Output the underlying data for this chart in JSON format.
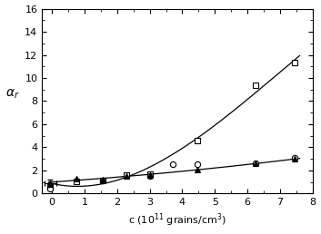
{
  "title": "",
  "xlabel": "c (10$^{11}$ grains/cm$^3$)",
  "ylabel": "$\\alpha_r$",
  "xlim": [
    -0.3,
    8
  ],
  "ylim": [
    0,
    16
  ],
  "xticks": [
    0,
    1,
    2,
    3,
    4,
    5,
    6,
    7,
    8
  ],
  "yticks": [
    0,
    2,
    4,
    6,
    8,
    10,
    12,
    14,
    16
  ],
  "series_squares": {
    "x": [
      -0.05,
      0.75,
      1.55,
      2.3,
      3.0,
      4.45,
      6.25,
      7.45
    ],
    "y": [
      0.55,
      1.05,
      1.15,
      1.6,
      1.65,
      4.55,
      9.35,
      11.3
    ]
  },
  "series_circles": {
    "x": [
      -0.05,
      1.55,
      3.0,
      3.7,
      4.45,
      6.25,
      7.45
    ],
    "y": [
      0.45,
      1.1,
      1.55,
      2.55,
      2.55,
      2.6,
      3.1
    ]
  },
  "series_triangles": {
    "x": [
      -0.05,
      0.75,
      1.55,
      2.3,
      3.0,
      4.45,
      6.25,
      7.45
    ],
    "y": [
      0.9,
      1.3,
      1.25,
      1.55,
      1.6,
      2.05,
      2.6,
      3.0
    ]
  },
  "errorbar_x": -0.05,
  "errorbar_y": 0.9,
  "errorbar_yerr": 0.28,
  "errorbar_xerr": 0.18,
  "background_color": "#ffffff",
  "line_color": "black"
}
